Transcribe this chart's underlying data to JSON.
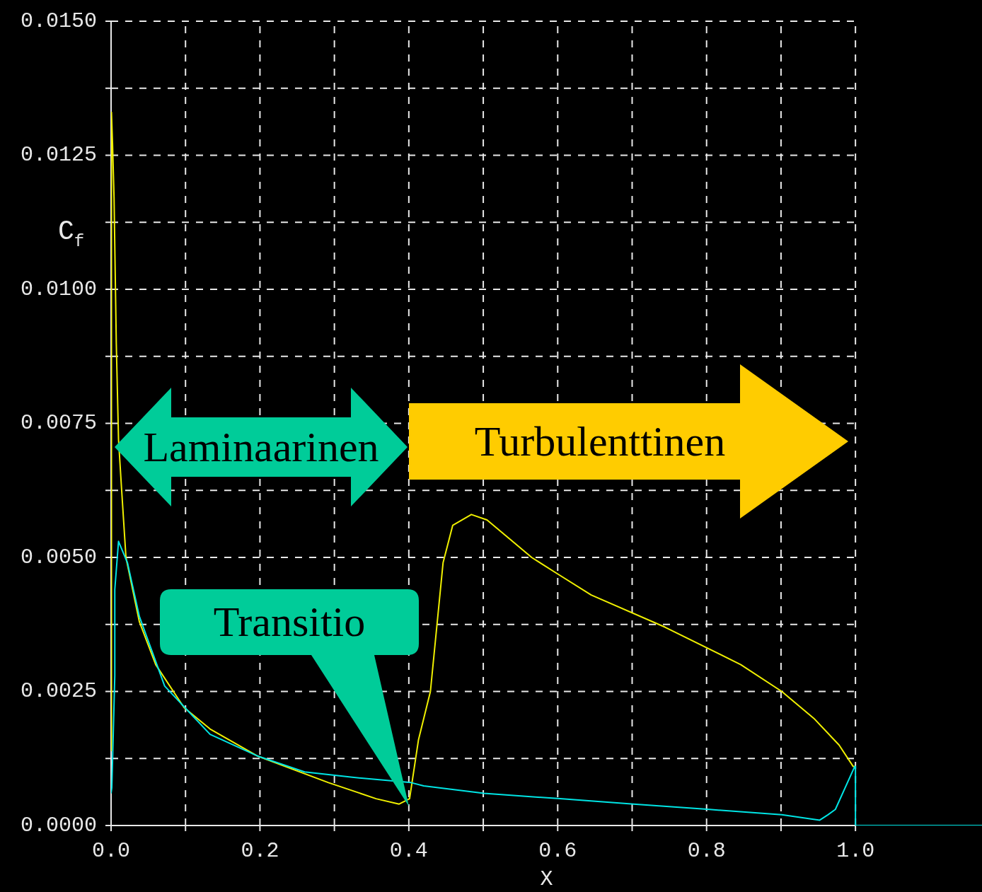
{
  "chart_data": {
    "type": "line",
    "xlabel": "X",
    "ylabel": "C$_{f}$",
    "xlim": [
      0,
      1.17
    ],
    "ylim": [
      0,
      0.015
    ],
    "xticks": [
      {
        "value": 0,
        "label": "0.0"
      },
      {
        "value": 0.1,
        "label": null
      },
      {
        "value": 0.2,
        "label": "0.2"
      },
      {
        "value": 0.3,
        "label": null
      },
      {
        "value": 0.4,
        "label": "0.4"
      },
      {
        "value": 0.5,
        "label": null
      },
      {
        "value": 0.6,
        "label": "0.6"
      },
      {
        "value": 0.7,
        "label": null
      },
      {
        "value": 0.8,
        "label": "0.8"
      },
      {
        "value": 0.9,
        "label": null
      },
      {
        "value": 1,
        "label": "1.0"
      }
    ],
    "yticks": [
      {
        "value": 0,
        "label": "0.0000"
      },
      {
        "value": 0.00125,
        "label": null
      },
      {
        "value": 0.0025,
        "label": "0.0025"
      },
      {
        "value": 0.00375,
        "label": null
      },
      {
        "value": 0.005,
        "label": "0.0050"
      },
      {
        "value": 0.00625,
        "label": null
      },
      {
        "value": 0.0075,
        "label": "0.0075"
      },
      {
        "value": 0.00875,
        "label": null
      },
      {
        "value": 0.01,
        "label": "0.0100"
      },
      {
        "value": 0.01125,
        "label": null
      },
      {
        "value": 0.0125,
        "label": "0.0125"
      },
      {
        "value": 0.01375,
        "label": null
      },
      {
        "value": 0.015,
        "label": "0.0150"
      }
    ],
    "grid": true,
    "legend": false,
    "marker": "none",
    "line_style": "solid",
    "annotations": [
      "Laminaarinen",
      "Turbulenttinen",
      "Transitio"
    ],
    "series": [
      {
        "color": "#f0f000",
        "x": [
          0,
          0.0005,
          0.002,
          0.004,
          0.007,
          0.01,
          0.014,
          0.02,
          0.038,
          0.06,
          0.098,
          0.133,
          0.196,
          0.292,
          0.356,
          0.387,
          0.401,
          0.413,
          0.429,
          0.446,
          0.459,
          0.484,
          0.505,
          0.565,
          0.599,
          0.645,
          0.744,
          0.846,
          0.901,
          0.944,
          0.978,
          0.997,
          1
        ],
        "values": [
          0.0014,
          0.0133,
          0.0127,
          0.0117,
          0.009,
          0.0072,
          0.0063,
          0.005,
          0.0038,
          0.003,
          0.0022,
          0.0018,
          0.0013,
          0.0008,
          0.0005,
          0.0004,
          0.0005,
          0.0016,
          0.0025,
          0.0049,
          0.0056,
          0.0058,
          0.0057,
          0.005,
          0.0047,
          0.0043,
          0.0037,
          0.003,
          0.0025,
          0.002,
          0.0015,
          0.0011,
          0.0011
        ]
      },
      {
        "color": "#00e5e5",
        "x": [
          0,
          0.001,
          0.005,
          0.005,
          0.01,
          0.022,
          0.038,
          0.072,
          0.133,
          0.196,
          0.26,
          0.324,
          0.403,
          0.42,
          0.501,
          0.603,
          0.702,
          0.804,
          0.901,
          0.952,
          0.963,
          0.973,
          0.999,
          1,
          1,
          1.17
        ],
        "values": [
          0.0006,
          0.0007,
          0.0028,
          0.0044,
          0.0053,
          0.0049,
          0.0039,
          0.0026,
          0.0017,
          0.0013,
          0.001,
          0.0009,
          0.0008,
          0.00074,
          0.0006,
          0.0005,
          0.0004,
          0.0003,
          0.0002,
          0.0001,
          0.0002,
          0.0003,
          0.0011,
          0.0011,
          0,
          0
        ]
      }
    ]
  }
}
